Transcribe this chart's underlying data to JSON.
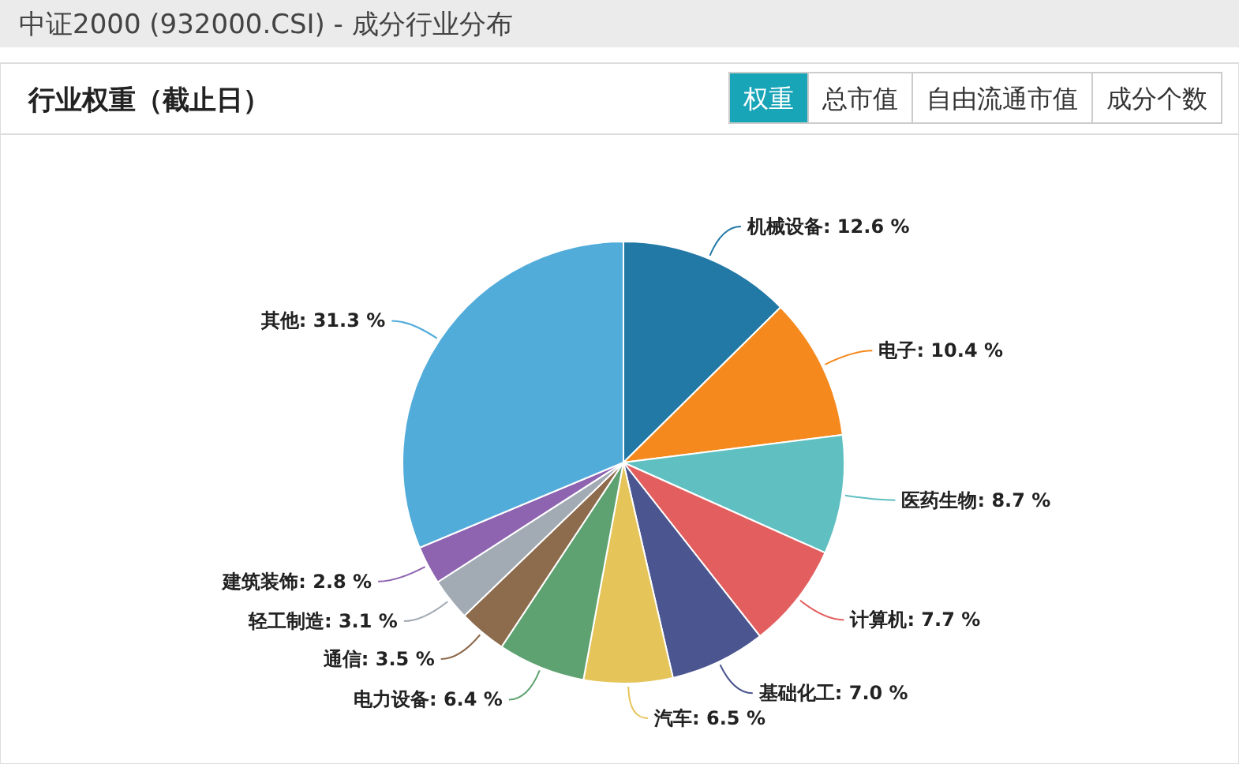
{
  "chart_data": {
    "type": "pie",
    "title": "中证2000 (932000.CSI) - 成分行业分布",
    "subtitle": "行业权重（截止日）",
    "annotations": [
      "权重",
      "总市值",
      "自由流通市值",
      "成分个数"
    ],
    "categories": [
      "机械设备",
      "电子",
      "医药生物",
      "计算机",
      "基础化工",
      "汽车",
      "电力设备",
      "通信",
      "轻工制造",
      "建筑装饰",
      "其他"
    ],
    "values": [
      12.6,
      10.4,
      8.7,
      7.7,
      7.0,
      6.5,
      6.4,
      3.5,
      3.1,
      2.8,
      31.3
    ],
    "value_labels": [
      "12.6 %",
      "10.4 %",
      "8.7 %",
      "7.7 %",
      "7.0 %",
      "6.5 %",
      "6.4 %",
      "3.5 %",
      "3.1 %",
      "2.8 %",
      "31.3 %"
    ],
    "colors": [
      "#2279a6",
      "#f5891d",
      "#5fbfc1",
      "#e35f5f",
      "#4b558f",
      "#e5c55a",
      "#5fa271",
      "#8d6b4d",
      "#a2abb4",
      "#8e63b0",
      "#52acda"
    ]
  }
}
